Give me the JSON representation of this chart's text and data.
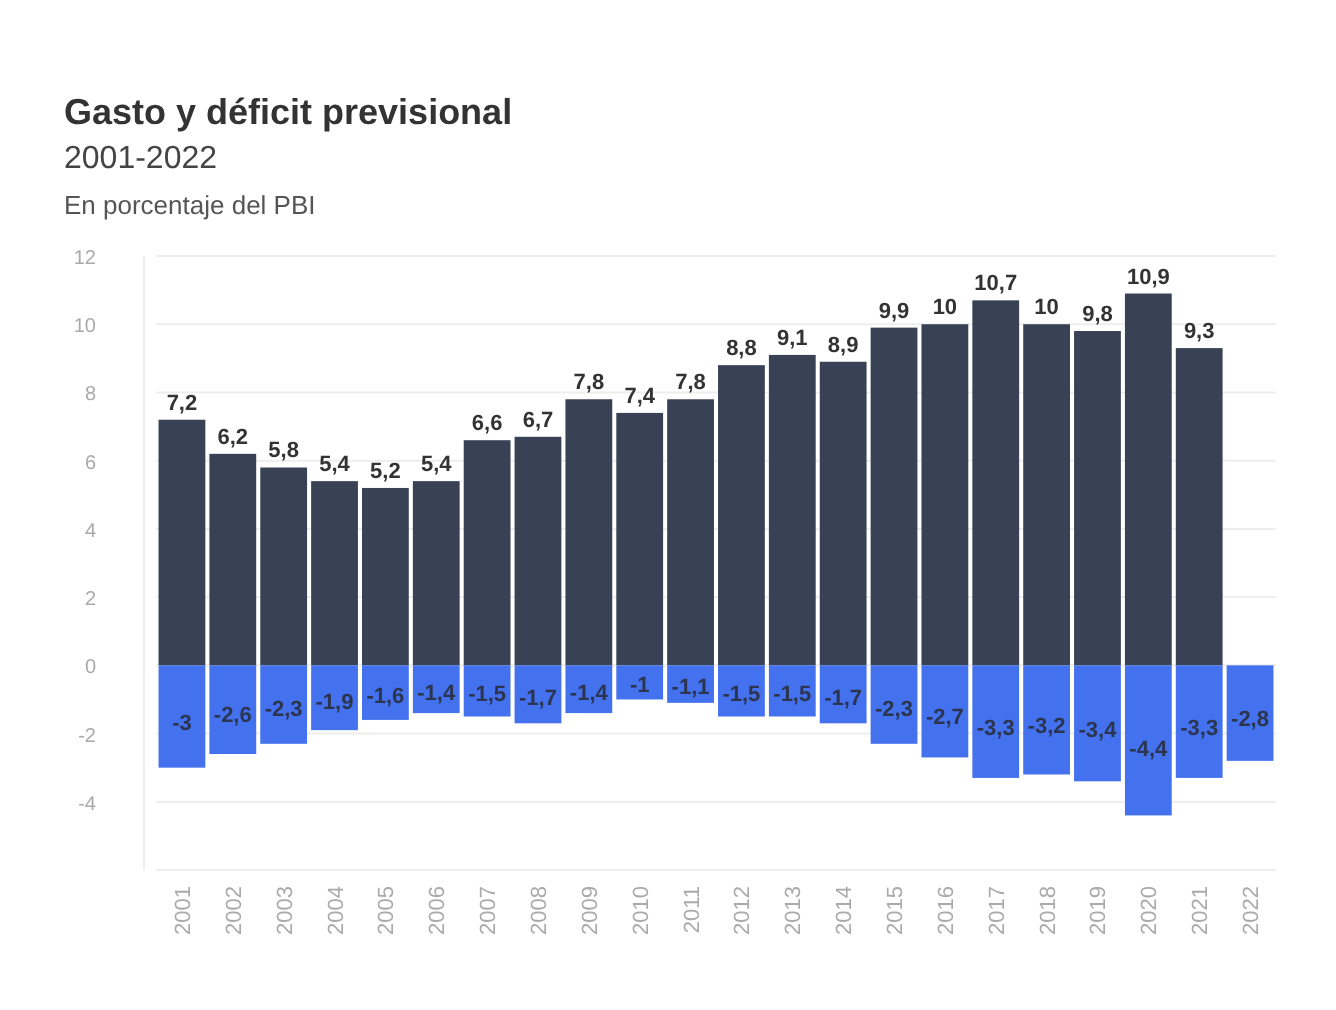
{
  "chart_data": {
    "type": "bar",
    "title": "Gasto y déficit previsional",
    "subtitle": "2001-2022",
    "ylabel": "En porcentaje del PBI",
    "categories": [
      "2001",
      "2002",
      "2003",
      "2004",
      "2005",
      "2006",
      "2007",
      "2008",
      "2009",
      "2010",
      "2011",
      "2012",
      "2013",
      "2014",
      "2015",
      "2016",
      "2017",
      "2018",
      "2019",
      "2020",
      "2021",
      "2022"
    ],
    "series": [
      {
        "color": "#394255",
        "values": [
          7.2,
          6.2,
          5.8,
          5.4,
          5.2,
          5.4,
          6.6,
          6.7,
          7.8,
          7.4,
          7.8,
          8.8,
          9.1,
          8.9,
          9.9,
          10,
          10.7,
          10,
          9.8,
          10.9,
          9.3,
          null
        ],
        "value_labels": [
          "7,2",
          "6,2",
          "5,8",
          "5,4",
          "5,2",
          "5,4",
          "6,6",
          "6,7",
          "7,8",
          "7,4",
          "7,8",
          "8,8",
          "9,1",
          "8,9",
          "9,9",
          "10",
          "10,7",
          "10",
          "9,8",
          "10,9",
          "9,3",
          null
        ]
      },
      {
        "color": "#4471ed",
        "values": [
          -3,
          -2.6,
          -2.3,
          -1.9,
          -1.6,
          -1.4,
          -1.5,
          -1.7,
          -1.4,
          -1,
          -1.1,
          -1.5,
          -1.5,
          -1.7,
          -2.3,
          -2.7,
          -3.3,
          -3.2,
          -3.4,
          -4.4,
          -3.3,
          -2.8
        ],
        "value_labels": [
          "-3",
          "-2,6",
          "-2,3",
          "-1,9",
          "-1,6",
          "-1,4",
          "-1,5",
          "-1,7",
          "-1,4",
          "-1",
          "-1,1",
          "-1,5",
          "-1,5",
          "-1,7",
          "-2,3",
          "-2,7",
          "-3,3",
          "-3,2",
          "-3,4",
          "-4,4",
          "-3,3",
          "-2,8"
        ]
      }
    ],
    "stacked": true,
    "ylim": [
      -6,
      12
    ],
    "yticks": [
      -4,
      -2,
      0,
      2,
      4,
      6,
      8,
      10,
      12
    ],
    "grid": "y"
  }
}
